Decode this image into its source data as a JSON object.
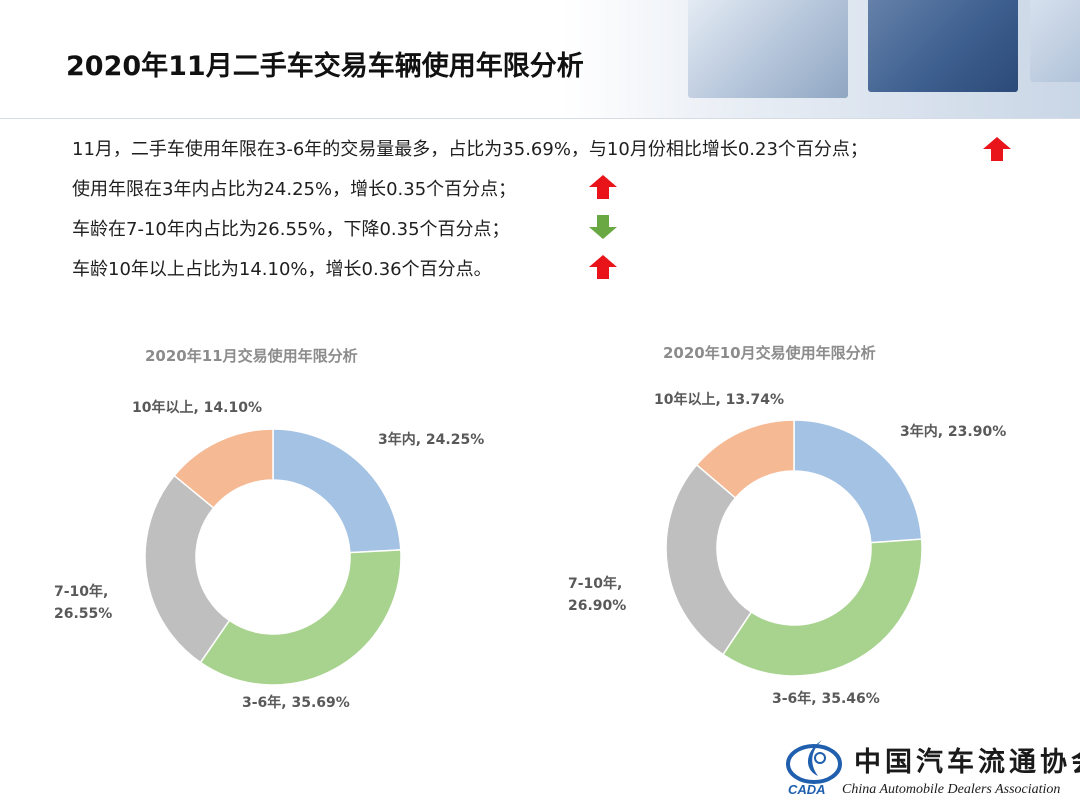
{
  "page": {
    "title": "2020年11月二手车交易车辆使用年限分析"
  },
  "bullets": [
    {
      "text": "11月，二手车使用年限在3-6年的交易量最多，占比为35.69%，与10月份相比增长0.23个百分点；",
      "trend": "up",
      "icon": "arrow-up-icon"
    },
    {
      "text": "使用年限在3年内占比为24.25%，增长0.35个百分点；",
      "trend": "up",
      "icon": "arrow-up-icon"
    },
    {
      "text": "车龄在7-10年内占比为26.55%，下降0.35个百分点；",
      "trend": "down",
      "icon": "arrow-down-icon"
    },
    {
      "text": "车龄10年以上占比为14.10%，增长0.36个百分点。",
      "trend": "up",
      "icon": "arrow-up-icon"
    }
  ],
  "colors": {
    "up": "#e8141a",
    "down": "#6aa843",
    "slices": [
      "#a4c2e3",
      "#a8d38e",
      "#bfbfbf",
      "#f5b994"
    ]
  },
  "chart_data": [
    {
      "type": "pie",
      "title": "2020年11月交易使用年限分析",
      "hole": "donut",
      "categories": [
        "3年内",
        "3-6年",
        "7-10年",
        "10年以上"
      ],
      "values": [
        24.25,
        35.69,
        26.55,
        14.1
      ],
      "labels": [
        "3年内, 24.25%",
        "3-6年, 35.69%",
        "7-10年,|26.55%",
        "10年以上, 14.10%"
      ]
    },
    {
      "type": "pie",
      "title": "2020年10月交易使用年限分析",
      "hole": "donut",
      "categories": [
        "3年内",
        "3-6年",
        "7-10年",
        "10年以上"
      ],
      "values": [
        23.9,
        35.46,
        26.9,
        13.74
      ],
      "labels": [
        "3年内, 23.90%",
        "3-6年, 35.46%",
        "7-10年,|26.90%",
        "10年以上, 13.74%"
      ]
    }
  ],
  "logo": {
    "cn": "中国汽车流通协会",
    "en": "China Automobile Dealers Association",
    "mark": "CADA"
  }
}
